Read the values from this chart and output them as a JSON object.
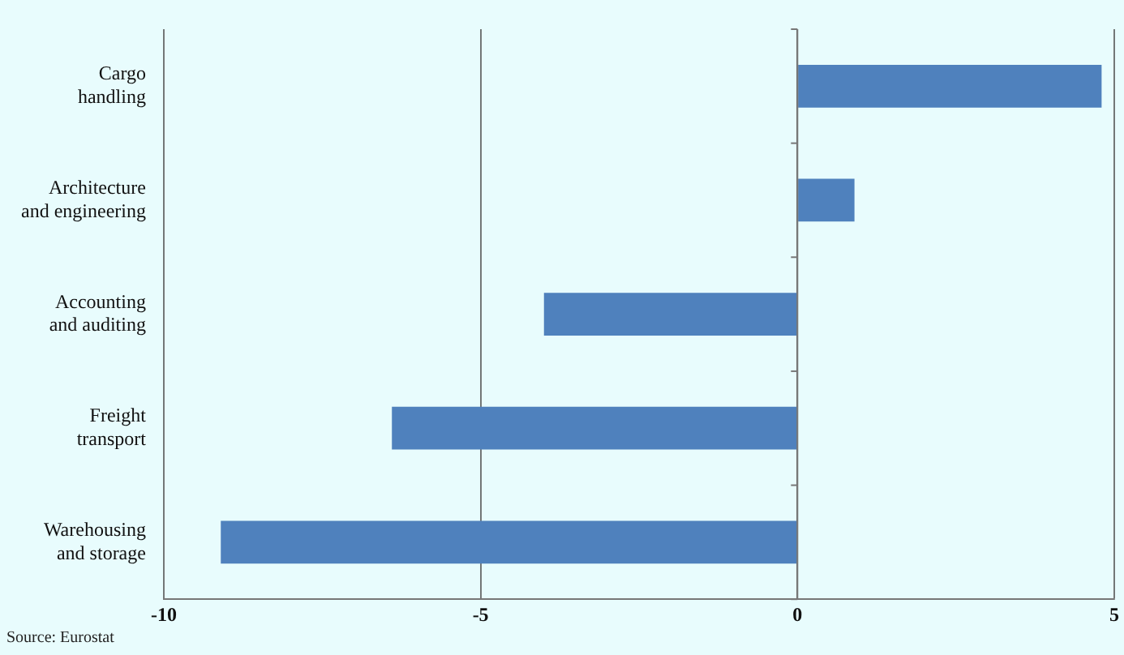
{
  "chart_data": {
    "type": "bar",
    "orientation": "horizontal",
    "categories": [
      "Cargo handling",
      "Architecture and engineering",
      "Accounting and auditing",
      "Freight transport",
      "Warehousing and storage"
    ],
    "values": [
      4.8,
      0.9,
      -4.0,
      -6.4,
      -9.1
    ],
    "color": "#4f81bd",
    "xlim": [
      -10,
      5
    ],
    "xticks": [
      -10,
      -5,
      0,
      5
    ],
    "grid": "x",
    "legend": false,
    "annotations": [
      "Source: Eurostat"
    ]
  }
}
